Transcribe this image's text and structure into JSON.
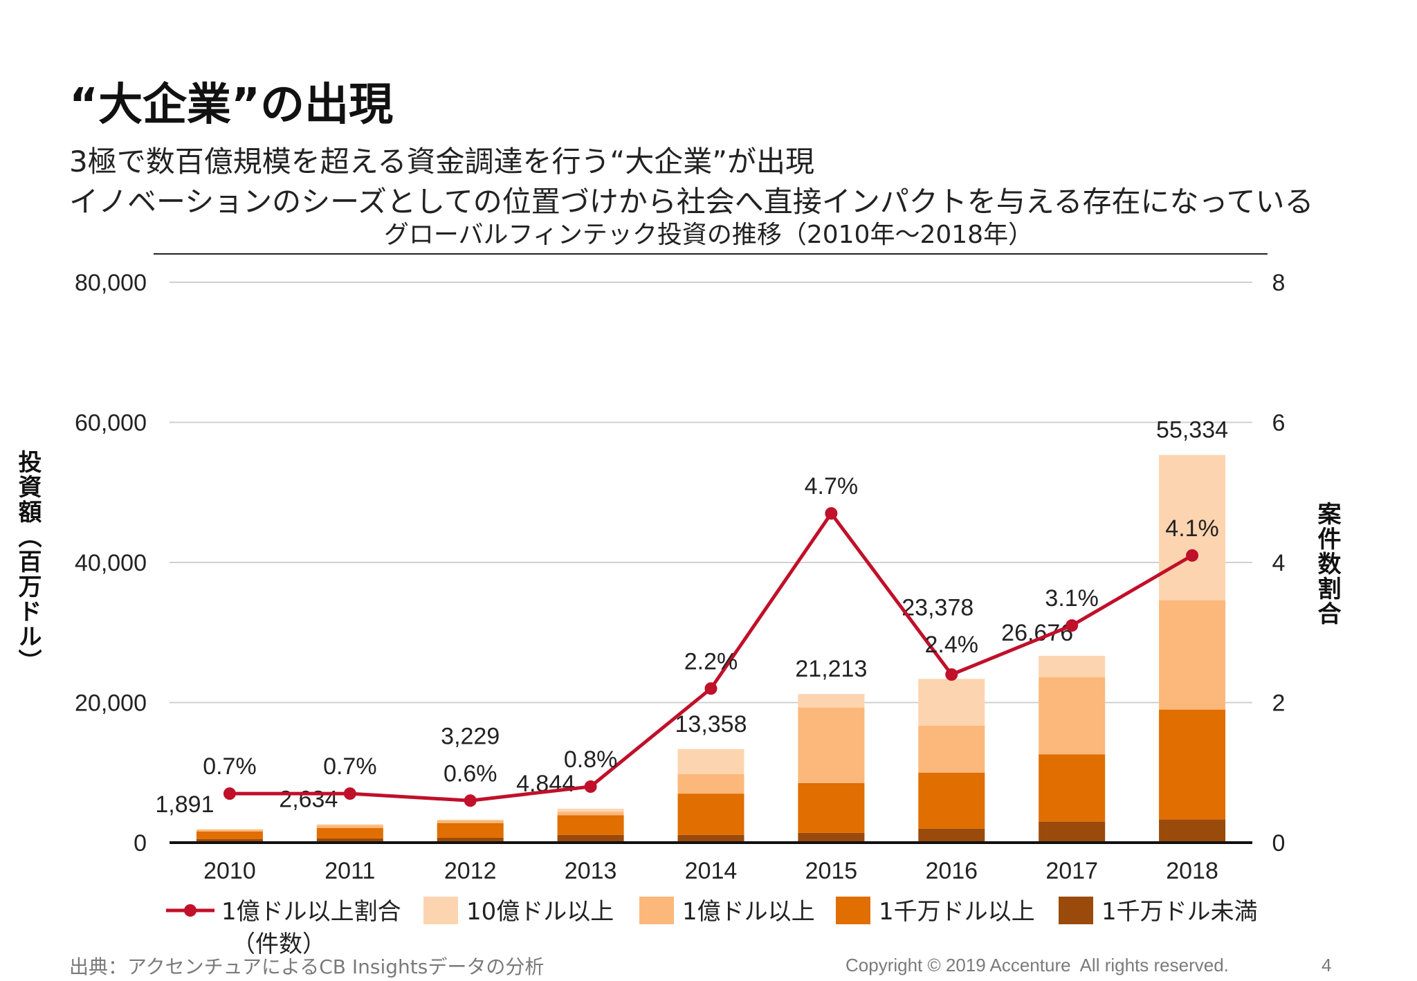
{
  "page": {
    "title": "“大企業”の出現",
    "subtitle_1": "3極で数百億規模を超える資金調達を行う“大企業”が出現",
    "subtitle_2": "イノベーションのシーズとしての位置づけから社会へ直接インパクトを与える存在になっている",
    "source": "出典：アクセンチュアによるCB Insightsデータの分析",
    "copyright": "Copyright © 2019 Accenture  All rights reserved.",
    "page_number": "4"
  },
  "colors": {
    "over_1b": "#fdd4b0",
    "over_100m": "#fbb87a",
    "over_10m": "#e06e00",
    "under_10m": "#9a4a0a",
    "line": "#c0102a",
    "grid": "#d0d0d0"
  },
  "chart_data": {
    "type": "bar",
    "title": "グローバルフィンテック投資の推移（2010年～2018年）",
    "ylabel": "投資額（百万ドル）",
    "y2label": "案件数割合",
    "ylim": [
      0,
      80000
    ],
    "y2lim": [
      0,
      8
    ],
    "yticks": [
      "0",
      "20,000",
      "40,000",
      "60,000",
      "80,000"
    ],
    "y2ticks": [
      "0",
      "2",
      "4",
      "6",
      "8"
    ],
    "grid": true,
    "legend_position": "bottom",
    "categories": [
      "2010",
      "2011",
      "2012",
      "2013",
      "2014",
      "2015",
      "2016",
      "2017",
      "2018"
    ],
    "totals": [
      1891,
      2634,
      3229,
      4844,
      13358,
      21213,
      23378,
      26676,
      55334
    ],
    "total_labels": [
      "1,891",
      "2,634",
      "3,229",
      "4,844",
      "13,358",
      "21,213",
      "23,378",
      "26,676",
      "55,334"
    ],
    "series": [
      {
        "name": "1千万ドル未満",
        "color_key": "under_10m",
        "values": [
          500,
          600,
          700,
          1100,
          1100,
          1400,
          2000,
          3000,
          3300
        ]
      },
      {
        "name": "1千万ドル以上",
        "color_key": "over_10m",
        "values": [
          1100,
          1500,
          2100,
          2800,
          5900,
          7100,
          8000,
          9600,
          15700
        ]
      },
      {
        "name": "1億ドル以上",
        "color_key": "over_100m",
        "values": [
          291,
          400,
          429,
          500,
          2800,
          10800,
          6700,
          11000,
          15600
        ]
      },
      {
        "name": "10億ドル以上",
        "color_key": "over_1b",
        "values": [
          0,
          134,
          0,
          444,
          3558,
          1913,
          6678,
          3076,
          20734
        ]
      }
    ],
    "line_series": {
      "name": "1億ドル以上割合（件数）",
      "axis": "right",
      "values": [
        0.7,
        0.7,
        0.6,
        0.8,
        2.2,
        4.7,
        2.4,
        3.1,
        4.1
      ],
      "labels": [
        "0.7%",
        "0.7%",
        "0.6%",
        "0.8%",
        "2.2%",
        "4.7%",
        "2.4%",
        "3.1%",
        "4.1%"
      ]
    },
    "legend": [
      {
        "label": "1億ドル以上割合",
        "label2": "（件数）",
        "kind": "line",
        "color_key": "line"
      },
      {
        "label": "10億ドル以上",
        "kind": "box",
        "color_key": "over_1b"
      },
      {
        "label": "1億ドル以上",
        "kind": "box",
        "color_key": "over_100m"
      },
      {
        "label": "1千万ドル以上",
        "kind": "box",
        "color_key": "over_10m"
      },
      {
        "label": "1千万ドル未満",
        "kind": "box",
        "color_key": "under_10m"
      }
    ]
  }
}
